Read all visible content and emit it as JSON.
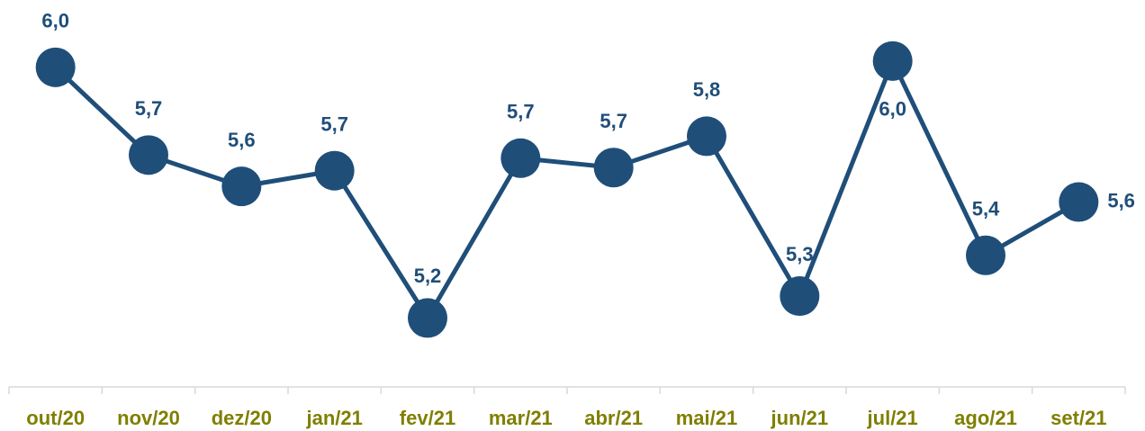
{
  "chart_data": {
    "type": "line",
    "categories": [
      "out/20",
      "nov/20",
      "dez/20",
      "jan/21",
      "fev/21",
      "mar/21",
      "abr/21",
      "mai/21",
      "jun/21",
      "jul/21",
      "ago/21",
      "set/21"
    ],
    "series": [
      {
        "color": "#1f4e79",
        "values": [
          5.99,
          5.71,
          5.61,
          5.66,
          5.19,
          5.7,
          5.67,
          5.77,
          5.26,
          6.01,
          5.39,
          5.56
        ],
        "value_labels": [
          "6,0",
          "5,7",
          "5,6",
          "5,7",
          "5,2",
          "5,7",
          "5,7",
          "5,8",
          "5,3",
          "6,0",
          "5,4",
          "5,6"
        ]
      }
    ],
    "ylim": [
      4.97,
      6.09
    ]
  }
}
